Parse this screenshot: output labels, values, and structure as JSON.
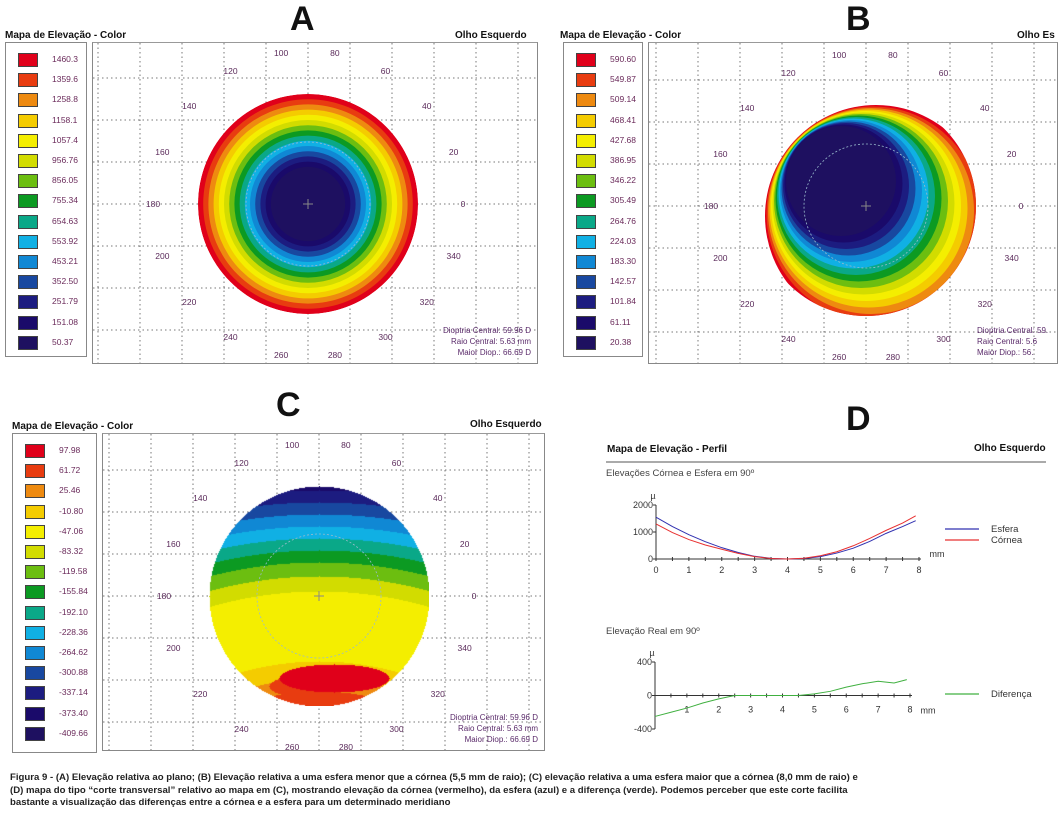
{
  "legend_colors": [
    "#e0001a",
    "#e83c10",
    "#ee8a10",
    "#f4cc00",
    "#f4ee00",
    "#d2dc00",
    "#6cbe10",
    "#0c9a22",
    "#0aa888",
    "#10b0e4",
    "#1088d4",
    "#1848a0",
    "#1c1c80",
    "#1a0a6a",
    "#1e1060"
  ],
  "panels": [
    {
      "letter": "A",
      "title": "Mapa de  Elevação - Color",
      "eye": "Olho Esquerdo",
      "legend_values": [
        "1460.3",
        "1359.6",
        "1258.8",
        "1158.1",
        "1057.4",
        "956.76",
        "856.05",
        "755.34",
        "654.63",
        "553.92",
        "453.21",
        "352.50",
        "251.79",
        "151.08",
        "50.37"
      ],
      "polar_labels": [
        "0",
        "20",
        "40",
        "60",
        "80",
        "100",
        "120",
        "140",
        "160",
        "180",
        "200",
        "220",
        "240",
        "260",
        "280",
        "300",
        "320",
        "340"
      ],
      "info": [
        "Dioptria Central:  59.96 D",
        "Raio Central:  5.63 mm",
        "Maior Diop.:  66.69 D"
      ]
    },
    {
      "letter": "B",
      "title": "Mapa de  Elevação - Color",
      "eye": "Olho Es",
      "legend_values": [
        "590.60",
        "549.87",
        "509.14",
        "468.41",
        "427.68",
        "386.95",
        "346.22",
        "305.49",
        "264.76",
        "224.03",
        "183.30",
        "142.57",
        "101.84",
        "61.11",
        "20.38"
      ],
      "polar_labels": [
        "0",
        "20",
        "40",
        "60",
        "80",
        "100",
        "120",
        "140",
        "160",
        "180",
        "200",
        "220",
        "240",
        "260",
        "280",
        "300",
        "320",
        "340"
      ],
      "info": [
        "Dioptria Central:  59.",
        "Raio Central:  5.6",
        "Maior Diop.:  56."
      ]
    },
    {
      "letter": "C",
      "title": "Mapa de  Elevação - Color",
      "eye": "Olho Esquerdo",
      "legend_values": [
        "97.98",
        "61.72",
        "25.46",
        "-10.80",
        "-47.06",
        "-83.32",
        "-119.58",
        "-155.84",
        "-192.10",
        "-228.36",
        "-264.62",
        "-300.88",
        "-337.14",
        "-373.40",
        "-409.66"
      ],
      "polar_labels": [
        "0",
        "20",
        "40",
        "60",
        "80",
        "100",
        "120",
        "140",
        "160",
        "180",
        "200",
        "220",
        "240",
        "260",
        "280",
        "300",
        "320",
        "340"
      ],
      "info": [
        "Dioptria Central:  59.96 D",
        "Raio Central:  5.63 mm",
        "Maior Diop.:  66.69 D"
      ]
    }
  ],
  "panel_d": {
    "letter": "D",
    "title": "Mapa de  Elevação - Perfil",
    "eye": "Olho Esquerdo"
  },
  "chart_data": [
    {
      "type": "line",
      "title": "Elevações Córnea e Esfera em 90º",
      "ylabel": "µ",
      "xlabel": "mm",
      "xlim": [
        0,
        8
      ],
      "ylim": [
        0,
        2000
      ],
      "x_ticks": [
        "0",
        "1",
        "2",
        "3",
        "4",
        "5",
        "6",
        "7",
        "8"
      ],
      "y_ticks": [
        "0",
        "1000",
        "2000"
      ],
      "legend": "right",
      "x": [
        0,
        0.5,
        1,
        1.5,
        2,
        2.5,
        3,
        3.5,
        4,
        4.5,
        5,
        5.5,
        6,
        6.5,
        7,
        7.5,
        7.9
      ],
      "series": [
        {
          "name": "Esfera",
          "color": "#3030b0",
          "values": [
            1550,
            1200,
            900,
            640,
            420,
            240,
            100,
            25,
            0,
            20,
            90,
            220,
            400,
            650,
            950,
            1200,
            1420
          ]
        },
        {
          "name": "Córnea",
          "color": "#e83030",
          "values": [
            1300,
            980,
            720,
            520,
            360,
            210,
            90,
            20,
            0,
            30,
            120,
            270,
            490,
            760,
            1060,
            1330,
            1600
          ]
        }
      ]
    },
    {
      "type": "line",
      "title": "Elevação Real em 90º",
      "ylabel": "µ",
      "xlabel": "mm",
      "xlim": [
        0,
        8
      ],
      "ylim": [
        -400,
        400
      ],
      "x_ticks": [
        "1",
        "2",
        "3",
        "4",
        "5",
        "6",
        "7",
        "8"
      ],
      "y_ticks": [
        "-400",
        "0",
        "400"
      ],
      "legend": "right",
      "x": [
        0,
        0.5,
        1,
        1.5,
        2,
        2.5,
        3,
        3.5,
        4,
        4.5,
        5,
        5.5,
        6,
        6.5,
        7,
        7.5,
        7.9
      ],
      "series": [
        {
          "name": "Diferença",
          "color": "#40b040",
          "values": [
            -250,
            -200,
            -150,
            -90,
            -40,
            0,
            0,
            0,
            0,
            0,
            20,
            50,
            100,
            140,
            170,
            150,
            190
          ]
        }
      ]
    }
  ],
  "caption": [
    "Figura 9 - (A) Elevação relativa ao plano; (B) Elevação relativa a uma esfera menor que a córnea (5,5 mm de raio); (C) elevação relativa a uma esfera maior que a córnea (8,0  mm de raio) e",
    "(D) mapa do tipo “corte transversal” relativo ao mapa em (C), mostrando elevação da córnea (vermelho), da esfera (azul) e a diferença (verde). Podemos perceber que este corte facilita",
    "bastante a visualização das diferenças entre a córnea e a esfera para um determinado meridiano"
  ]
}
